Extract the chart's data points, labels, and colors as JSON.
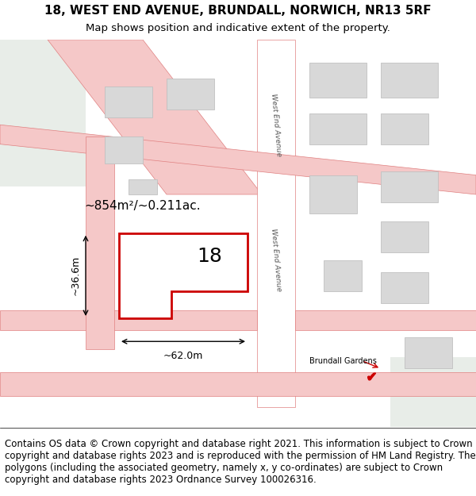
{
  "title_line1": "18, WEST END AVENUE, BRUNDALL, NORWICH, NR13 5RF",
  "title_line2": "Map shows position and indicative extent of the property.",
  "footer_text": "Contains OS data © Crown copyright and database right 2021. This information is subject to Crown copyright and database rights 2023 and is reproduced with the permission of HM Land Registry. The polygons (including the associated geometry, namely x, y co-ordinates) are subject to Crown copyright and database rights 2023 Ordnance Survey 100026316.",
  "bg_color": "#f7f4f0",
  "map_bg": "#f7f4f0",
  "road_color": "#f5c8c8",
  "road_edge_color": "#e08080",
  "building_fill": "#d8d8d8",
  "building_edge": "#c0c0c0",
  "green_area": "#e8ede8",
  "plot_color": "#cc0000",
  "plot_label": "18",
  "area_label": "~854m²/~0.211ac.",
  "dim_width": "~62.0m",
  "dim_height": "~36.6m",
  "street_label1": "West End Avenue",
  "street_label2": "West End Avenue",
  "station_label": "Brundall Gardens",
  "title_fontsize": 11,
  "footer_fontsize": 8.5
}
